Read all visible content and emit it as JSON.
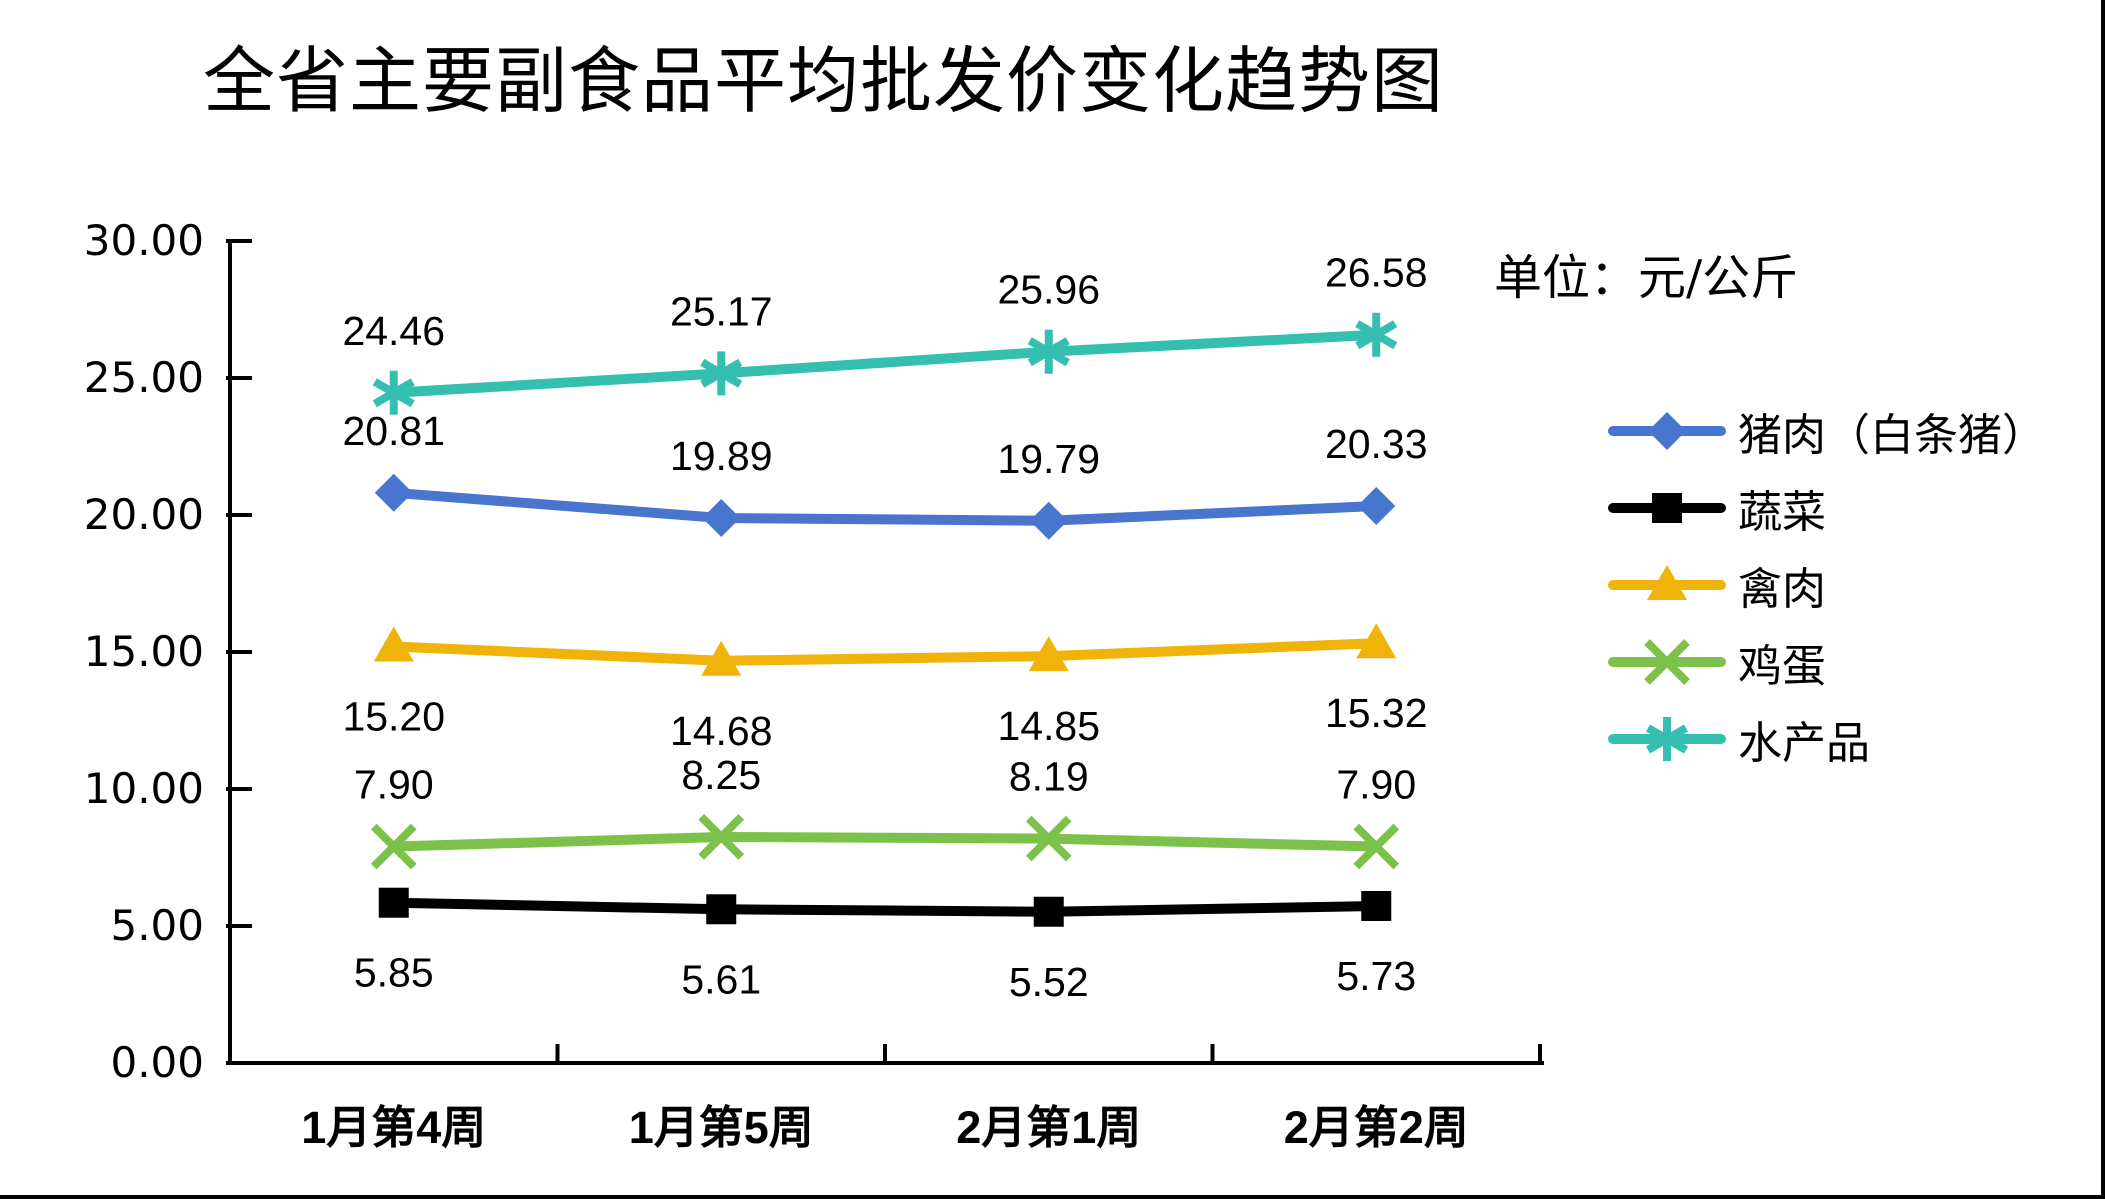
{
  "title": "全省主要副食品平均批发价变化趋势图",
  "unit_label": "单位：元/公斤",
  "chart_data": {
    "type": "line",
    "categories": [
      "1月第4周",
      "1月第5周",
      "2月第1周",
      "2月第2周"
    ],
    "series": [
      {
        "name": "猪肉（白条猪）",
        "marker": "diamond",
        "color": "#4876CE",
        "label_side": "above",
        "values": [
          20.81,
          19.89,
          19.79,
          20.33
        ]
      },
      {
        "name": "蔬菜",
        "marker": "square",
        "color": "#000000",
        "label_side": "below",
        "values": [
          5.85,
          5.61,
          5.52,
          5.73
        ]
      },
      {
        "name": "禽肉",
        "marker": "triangle",
        "color": "#F0B30A",
        "label_side": "below",
        "values": [
          15.2,
          14.68,
          14.85,
          15.32
        ]
      },
      {
        "name": "鸡蛋",
        "marker": "x",
        "color": "#7CC24A",
        "label_side": "above",
        "values": [
          7.9,
          8.25,
          8.19,
          7.9
        ]
      },
      {
        "name": "水产品",
        "marker": "star",
        "color": "#35BFB0",
        "label_side": "above",
        "values": [
          24.46,
          25.17,
          25.96,
          26.58
        ]
      }
    ],
    "ylim": [
      0,
      30
    ],
    "ytick_step": 5,
    "ytick_labels": [
      "0.00",
      "5.00",
      "10.00",
      "15.00",
      "20.00",
      "25.00",
      "30.00"
    ],
    "grid": false,
    "legend_position": "right",
    "axis_color": "#000000"
  }
}
